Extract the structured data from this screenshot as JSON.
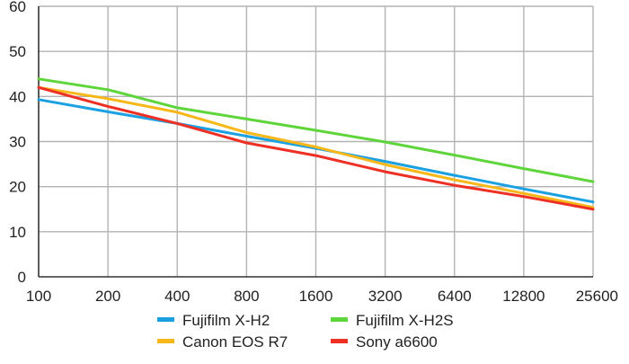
{
  "chart_data": {
    "type": "line",
    "title": "",
    "xlabel": "",
    "ylabel": "",
    "x_scale": "log2",
    "categories": [
      "100",
      "200",
      "400",
      "800",
      "1600",
      "3200",
      "6400",
      "12800",
      "25600"
    ],
    "ylim": [
      0,
      60
    ],
    "yticks": [
      "0",
      "10",
      "20",
      "30",
      "40",
      "50",
      "60"
    ],
    "grid": true,
    "legend_position": "bottom",
    "series": [
      {
        "name": "Fujifilm X-H2",
        "color": "#1ba1e2",
        "values": [
          39.3,
          36.6,
          34.0,
          31.2,
          28.5,
          25.6,
          22.5,
          19.5,
          16.6
        ]
      },
      {
        "name": "Fujifilm X-H2S",
        "color": "#5fd53c",
        "values": [
          43.9,
          41.5,
          37.5,
          35.0,
          32.5,
          29.9,
          27.0,
          24.0,
          21.1
        ]
      },
      {
        "name": "Canon EOS R7",
        "color": "#f7b718",
        "values": [
          42.0,
          39.5,
          36.5,
          32.0,
          28.8,
          24.9,
          21.5,
          18.5,
          15.4
        ]
      },
      {
        "name": "Sony a6600",
        "color": "#ee2f24",
        "values": [
          42.0,
          37.8,
          34.0,
          29.7,
          26.9,
          23.3,
          20.3,
          17.8,
          15.0
        ]
      }
    ]
  }
}
